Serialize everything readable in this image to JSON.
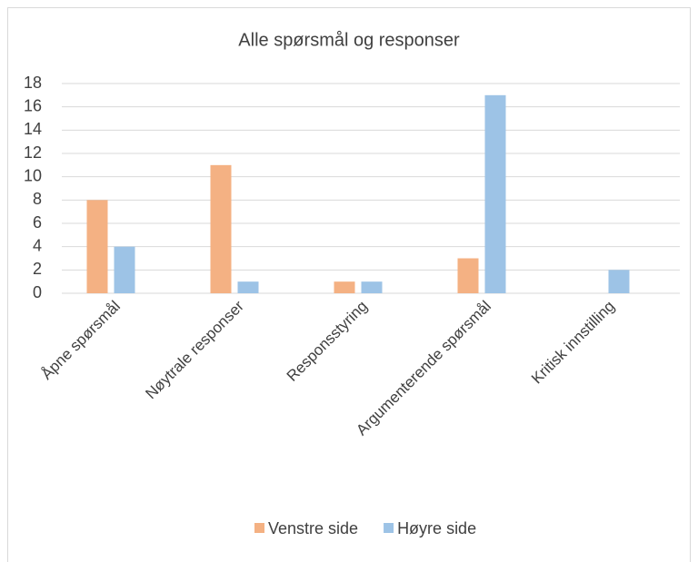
{
  "chart_data": {
    "type": "bar",
    "title": "Alle spørsmål og responser",
    "categories": [
      "Åpne spørsmål",
      "Nøytrale responser",
      "Responsstyring",
      "Argumenterende spørsmål",
      "Kritisk innstilling"
    ],
    "series": [
      {
        "name": "Venstre side",
        "color": "#f4b183",
        "values": [
          8,
          11,
          1,
          3,
          0
        ]
      },
      {
        "name": "Høyre side",
        "color": "#9dc3e6",
        "values": [
          4,
          1,
          1,
          17,
          2
        ]
      }
    ],
    "ylim": [
      0,
      18
    ],
    "yticks": [
      0,
      2,
      4,
      6,
      8,
      10,
      12,
      14,
      16,
      18
    ],
    "grid": true,
    "legend": "bottom"
  }
}
